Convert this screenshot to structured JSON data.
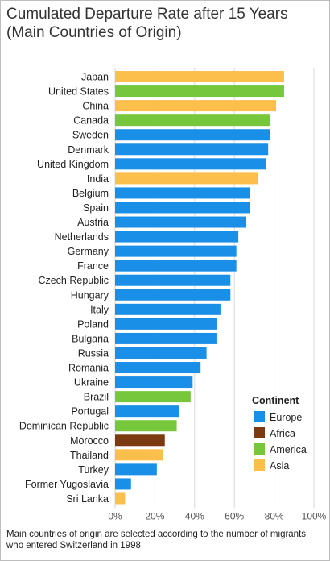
{
  "chart_data": {
    "type": "bar",
    "orientation": "horizontal",
    "title": "Cumulated Departure Rate after 15 Years (Main Countries of Origin)",
    "categories": [
      "Japan",
      "United States",
      "China",
      "Canada",
      "Sweden",
      "Denmark",
      "United Kingdom",
      "India",
      "Belgium",
      "Spain",
      "Austria",
      "Netherlands",
      "Germany",
      "France",
      "Czech Republic",
      "Hungary",
      "Italy",
      "Poland",
      "Bulgaria",
      "Russia",
      "Romania",
      "Ukraine",
      "Brazil",
      "Portugal",
      "Dominican Republic",
      "Morocco",
      "Thailand",
      "Turkey",
      "Former Yugoslavia",
      "Sri Lanka"
    ],
    "values": [
      85,
      85,
      81,
      78,
      78,
      77,
      76,
      72,
      68,
      68,
      66,
      62,
      61,
      61,
      58,
      58,
      53,
      51,
      51,
      46,
      43,
      39,
      38,
      32,
      31,
      25,
      24,
      21,
      8,
      5
    ],
    "groups": [
      "Asia",
      "America",
      "Asia",
      "America",
      "Europe",
      "Europe",
      "Europe",
      "Asia",
      "Europe",
      "Europe",
      "Europe",
      "Europe",
      "Europe",
      "Europe",
      "Europe",
      "Europe",
      "Europe",
      "Europe",
      "Europe",
      "Europe",
      "Europe",
      "Europe",
      "America",
      "Europe",
      "America",
      "Africa",
      "Asia",
      "Europe",
      "Europe",
      "Asia"
    ],
    "xlim": [
      0,
      100
    ],
    "xticks": [
      "0%",
      "20%",
      "40%",
      "60%",
      "80%",
      "100%"
    ],
    "grid": true,
    "legend": {
      "title": "Continent",
      "placement": "bottom-right",
      "entries": [
        {
          "name": "Europe",
          "color": "#1a8fe8"
        },
        {
          "name": "Africa",
          "color": "#7b3a10"
        },
        {
          "name": "America",
          "color": "#77c73d"
        },
        {
          "name": "Asia",
          "color": "#fdbf4b"
        }
      ]
    }
  },
  "footnote": "Main countries of origin are selected according to the number of migrants who entered Switzerland in 1998"
}
